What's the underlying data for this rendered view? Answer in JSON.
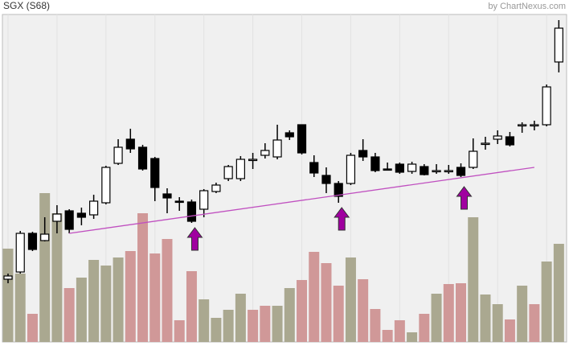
{
  "chart_data": {
    "type": "candlestick",
    "title": "SGX (S68)",
    "source": "by ChartNexus.com",
    "open": [
      83,
      92,
      140,
      131,
      155,
      168,
      165,
      163,
      178,
      227,
      257,
      247,
      233,
      189,
      180,
      179,
      170,
      192,
      208,
      208,
      231,
      237,
      235,
      265,
      275,
      228,
      212,
      202,
      202,
      243,
      235,
      220,
      226,
      217,
      223,
      218,
      218,
      222,
      222,
      252,
      257,
      260,
      275,
      275,
      275,
      353
    ],
    "high": [
      90,
      143,
      142,
      160,
      175,
      170,
      172,
      188,
      224,
      257,
      270,
      250,
      235,
      196,
      185,
      182,
      195,
      203,
      225,
      236,
      240,
      252,
      275,
      268,
      275,
      237,
      222,
      205,
      240,
      257,
      240,
      228,
      228,
      229,
      226,
      226,
      225,
      227,
      258,
      260,
      268,
      266,
      278,
      280,
      325,
      405
    ],
    "low": [
      78,
      90,
      118,
      130,
      140,
      140,
      150,
      158,
      176,
      225,
      240,
      218,
      180,
      165,
      168,
      153,
      160,
      190,
      205,
      205,
      220,
      233,
      232,
      256,
      238,
      210,
      190,
      178,
      200,
      230,
      216,
      218,
      214,
      214,
      212,
      214,
      214,
      210,
      220,
      244,
      251,
      248,
      265,
      268,
      273,
      340
    ],
    "close": [
      87,
      140,
      120,
      139,
      164,
      145,
      160,
      180,
      222,
      247,
      245,
      220,
      197,
      184,
      179,
      155,
      193,
      200,
      223,
      232,
      232,
      243,
      256,
      260,
      240,
      215,
      202,
      186,
      237,
      235,
      218,
      219,
      216,
      226,
      213,
      218,
      218,
      212,
      242,
      252,
      261,
      250,
      275,
      275,
      322,
      395
    ],
    "ylim": [
      5,
      412
    ],
    "up_color": "#ffffff",
    "down_color": "#000000",
    "volume": {
      "values": [
        116,
        85,
        35,
        185,
        160,
        67,
        80,
        102,
        95,
        105,
        113,
        160,
        110,
        128,
        27,
        88,
        53,
        30,
        40,
        60,
        40,
        45,
        45,
        67,
        77,
        112,
        98,
        70,
        105,
        78,
        41,
        15,
        27,
        12,
        35,
        60,
        72,
        73,
        155,
        59,
        47,
        28,
        70,
        47,
        100,
        122
      ],
      "colors": [
        "#aaa890",
        "#aaa890",
        "#d09898",
        "#aaa890",
        "#aaa890",
        "#d09898",
        "#aaa890",
        "#aaa890",
        "#aaa890",
        "#aaa890",
        "#d09898",
        "#d09898",
        "#d09898",
        "#d09898",
        "#d09898",
        "#d09898",
        "#aaa890",
        "#aaa890",
        "#aaa890",
        "#aaa890",
        "#d09898",
        "#d09898",
        "#aaa890",
        "#aaa890",
        "#d09898",
        "#d09898",
        "#d09898",
        "#d09898",
        "#aaa890",
        "#d09898",
        "#d09898",
        "#d09898",
        "#d09898",
        "#aaa890",
        "#d09898",
        "#aaa890",
        "#d09898",
        "#d09898",
        "#aaa890",
        "#aaa890",
        "#aaa890",
        "#d09898",
        "#aaa890",
        "#d09898",
        "#aaa890",
        "#aaa890"
      ],
      "ylim": [
        0,
        407
      ]
    },
    "trendline": {
      "from": [
        5,
        140
      ],
      "to": [
        43,
        222
      ],
      "color": "#c050c0"
    },
    "arrows": {
      "at": [
        15,
        27,
        37
      ],
      "tip": [
        147,
        172,
        198
      ],
      "color": "#a000a0"
    }
  }
}
